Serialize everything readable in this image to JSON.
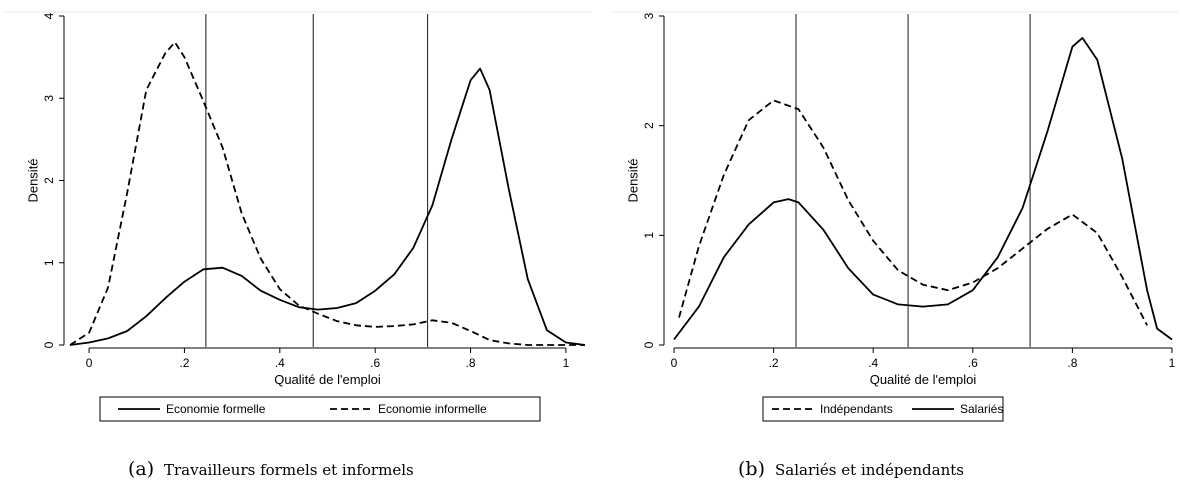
{
  "chart_data": [
    {
      "type": "line",
      "panel_letter": "(a)",
      "caption": "Travailleurs formels et informels",
      "xlabel": "Qualité de l'emploi",
      "ylabel": "Densité",
      "xlim": [
        -0.04,
        1.04
      ],
      "ylim": [
        0,
        4
      ],
      "xticks": [
        0,
        0.2,
        0.4,
        0.6,
        0.8,
        1
      ],
      "xtick_labels": [
        "0",
        ".2",
        ".4",
        ".6",
        ".8",
        "1"
      ],
      "yticks": [
        0,
        1,
        2,
        3,
        4
      ],
      "ytick_labels": [
        "0",
        "1",
        "2",
        "3",
        "4"
      ],
      "vlines": [
        0.245,
        0.47,
        0.71
      ],
      "legend_position": "bottom",
      "series": [
        {
          "name": "Economie formelle",
          "style": "solid",
          "x": [
            -0.04,
            0.0,
            0.04,
            0.08,
            0.12,
            0.16,
            0.2,
            0.24,
            0.28,
            0.32,
            0.36,
            0.4,
            0.44,
            0.48,
            0.52,
            0.56,
            0.6,
            0.64,
            0.68,
            0.72,
            0.76,
            0.8,
            0.82,
            0.84,
            0.88,
            0.92,
            0.96,
            1.0,
            1.04
          ],
          "values": [
            0.0,
            0.03,
            0.08,
            0.17,
            0.35,
            0.57,
            0.77,
            0.92,
            0.94,
            0.84,
            0.66,
            0.55,
            0.46,
            0.43,
            0.45,
            0.51,
            0.66,
            0.86,
            1.18,
            1.7,
            2.5,
            3.22,
            3.36,
            3.1,
            1.9,
            0.8,
            0.18,
            0.03,
            0.0
          ]
        },
        {
          "name": "Economie informelle",
          "style": "dashed",
          "x": [
            -0.04,
            0.0,
            0.04,
            0.08,
            0.12,
            0.16,
            0.18,
            0.2,
            0.24,
            0.28,
            0.32,
            0.36,
            0.4,
            0.44,
            0.48,
            0.52,
            0.56,
            0.6,
            0.64,
            0.68,
            0.72,
            0.76,
            0.8,
            0.84,
            0.88,
            0.92,
            0.96,
            1.0,
            1.04
          ],
          "values": [
            0.0,
            0.15,
            0.7,
            1.85,
            3.1,
            3.55,
            3.68,
            3.5,
            2.96,
            2.4,
            1.6,
            1.05,
            0.68,
            0.48,
            0.38,
            0.29,
            0.24,
            0.22,
            0.23,
            0.25,
            0.3,
            0.27,
            0.17,
            0.06,
            0.02,
            0.0,
            0.0,
            0.0,
            0.0
          ]
        }
      ]
    },
    {
      "type": "line",
      "panel_letter": "(b)",
      "caption": "Salariés et indépendants",
      "xlabel": "Qualité de l'emploi",
      "ylabel": "Densité",
      "xlim": [
        0,
        1
      ],
      "ylim": [
        0,
        3
      ],
      "xticks": [
        0,
        0.2,
        0.4,
        0.6,
        0.8,
        1
      ],
      "xtick_labels": [
        "0",
        ".2",
        ".4",
        ".6",
        ".8",
        "1"
      ],
      "yticks": [
        0,
        1,
        2,
        3
      ],
      "ytick_labels": [
        "0",
        "1",
        "2",
        "3"
      ],
      "vlines": [
        0.245,
        0.47,
        0.715
      ],
      "legend_position": "bottom",
      "series": [
        {
          "name": "Indépendants",
          "style": "dashed",
          "x": [
            0.01,
            0.05,
            0.1,
            0.15,
            0.2,
            0.25,
            0.3,
            0.35,
            0.4,
            0.45,
            0.5,
            0.55,
            0.6,
            0.65,
            0.7,
            0.75,
            0.8,
            0.85,
            0.9,
            0.95
          ],
          "values": [
            0.25,
            0.9,
            1.55,
            2.05,
            2.23,
            2.15,
            1.8,
            1.32,
            0.95,
            0.68,
            0.55,
            0.5,
            0.57,
            0.7,
            0.88,
            1.06,
            1.19,
            1.02,
            0.62,
            0.18
          ]
        },
        {
          "name": "Salariés",
          "style": "solid",
          "x": [
            0.0,
            0.05,
            0.1,
            0.15,
            0.2,
            0.23,
            0.25,
            0.3,
            0.35,
            0.4,
            0.45,
            0.5,
            0.55,
            0.6,
            0.65,
            0.7,
            0.75,
            0.8,
            0.82,
            0.85,
            0.9,
            0.95,
            0.97,
            1.0
          ],
          "values": [
            0.05,
            0.35,
            0.8,
            1.1,
            1.3,
            1.33,
            1.3,
            1.05,
            0.7,
            0.46,
            0.37,
            0.35,
            0.37,
            0.5,
            0.8,
            1.25,
            1.95,
            2.72,
            2.8,
            2.6,
            1.7,
            0.5,
            0.15,
            0.05
          ]
        }
      ]
    }
  ]
}
